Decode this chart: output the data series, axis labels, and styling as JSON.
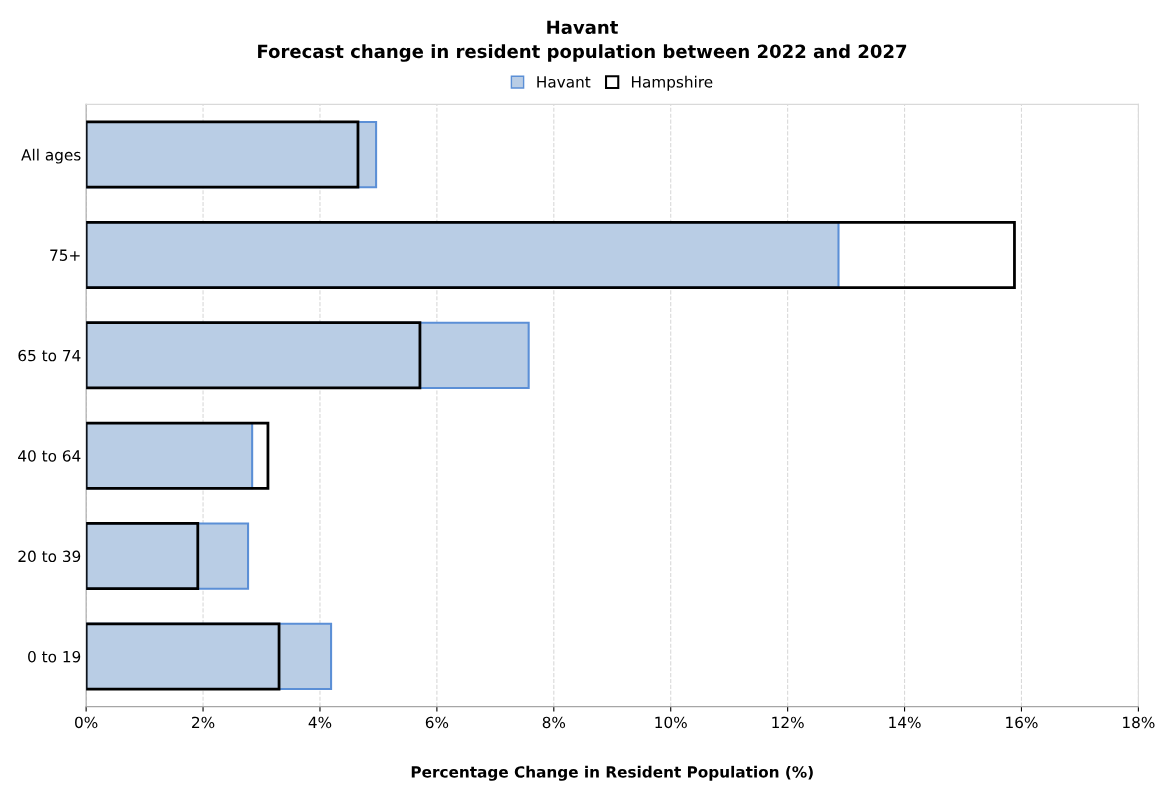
{
  "chart_data": {
    "type": "bar",
    "orientation": "horizontal",
    "title": "Havant",
    "subtitle": "Forecast change in resident population between 2022 and 2027",
    "xlabel": "Percentage Change in Resident Population (%)",
    "categories": [
      "All ages",
      "75+",
      "65 to 74",
      "40 to 64",
      "20 to 39",
      "0 to 19"
    ],
    "series": [
      {
        "name": "Havant",
        "color": "#b9cde5",
        "values": [
          4.96,
          12.87,
          7.57,
          2.84,
          2.77,
          4.19
        ]
      },
      {
        "name": "Hampshire",
        "color": "#000000",
        "values": [
          4.65,
          15.88,
          5.71,
          3.11,
          1.91,
          3.3
        ]
      }
    ],
    "xlim": [
      0,
      18
    ],
    "xticks": [
      {
        "value": 0,
        "label": "0%"
      },
      {
        "value": 2,
        "label": "2%"
      },
      {
        "value": 4,
        "label": "4%"
      },
      {
        "value": 6,
        "label": "6%"
      },
      {
        "value": 8,
        "label": "8%"
      },
      {
        "value": 10,
        "label": "10%"
      },
      {
        "value": 12,
        "label": "12%"
      },
      {
        "value": 14,
        "label": "14%"
      },
      {
        "value": 16,
        "label": "16%"
      },
      {
        "value": 18,
        "label": "18%"
      }
    ],
    "grid": "x",
    "line_style": "dashed",
    "legend": "top"
  }
}
